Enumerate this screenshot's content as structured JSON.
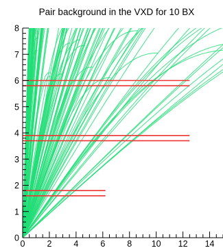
{
  "chart_data": {
    "type": "line",
    "title": "Pair background in the VXD for 10 BX",
    "xlabel": "",
    "ylabel": "",
    "xlim": [
      0,
      15
    ],
    "ylim": [
      0,
      8
    ],
    "x_ticks": [
      "0",
      "2",
      "4",
      "6",
      "8",
      "10",
      "12",
      "14"
    ],
    "y_ticks": [
      "0",
      "1",
      "2",
      "3",
      "4",
      "5",
      "6",
      "7",
      "8"
    ],
    "grid": false,
    "legend": "none",
    "colors": {
      "tracks": "#22dd77",
      "layers": "#ee3333",
      "axis": "#000000"
    },
    "detector_layers": [
      {
        "r": 1.6,
        "z_max": 6.2
      },
      {
        "r": 1.8,
        "z_max": 6.2
      },
      {
        "r": 3.7,
        "z_max": 12.5
      },
      {
        "r": 3.9,
        "z_max": 12.5
      },
      {
        "r": 5.8,
        "z_max": 12.5
      },
      {
        "r": 6.0,
        "z_max": 12.5
      }
    ],
    "tracks": {
      "count": 130,
      "description_values": "helical pair-background trajectories from origin",
      "radius_range": [
        3.0,
        9.0
      ],
      "initial_slope_range": [
        0.45,
        18.0
      ]
    }
  }
}
